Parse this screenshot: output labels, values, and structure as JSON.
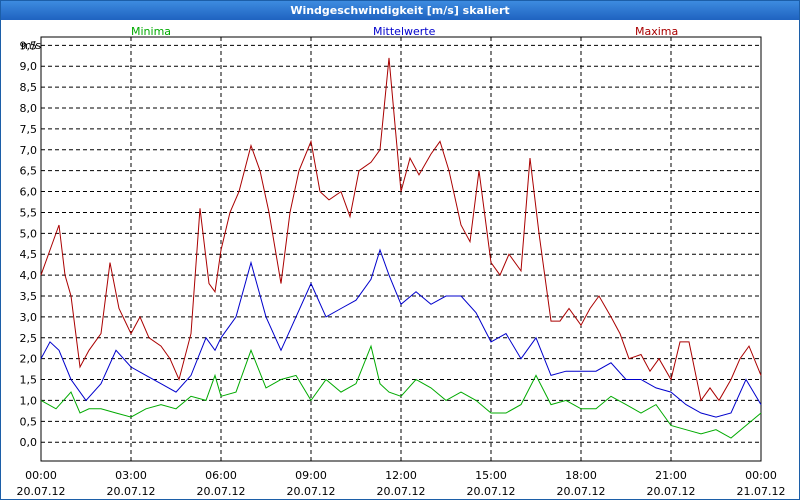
{
  "window": {
    "title": "Windgeschwindigkeit [m/s] skaliert"
  },
  "chart_data": {
    "type": "line",
    "title": "Windgeschwindigkeit [m/s] skaliert",
    "ylabel": "m/s",
    "ylim": [
      0,
      9.5
    ],
    "yticks": [
      "0,0",
      "0,5",
      "1,0",
      "1,5",
      "2,0",
      "2,5",
      "3,0",
      "3,5",
      "4,0",
      "4,5",
      "5,0",
      "5,5",
      "6,0",
      "6,5",
      "7,0",
      "7,5",
      "8,0",
      "8,5",
      "9,0",
      "9,5"
    ],
    "xticks": [
      {
        "time": "00:00",
        "date": "20.07.12"
      },
      {
        "time": "03:00",
        "date": "20.07.12"
      },
      {
        "time": "06:00",
        "date": "20.07.12"
      },
      {
        "time": "09:00",
        "date": "20.07.12"
      },
      {
        "time": "12:00",
        "date": "20.07.12"
      },
      {
        "time": "15:00",
        "date": "20.07.12"
      },
      {
        "time": "18:00",
        "date": "20.07.12"
      },
      {
        "time": "21:00",
        "date": "20.07.12"
      },
      {
        "time": "00:00",
        "date": "21.07.12"
      }
    ],
    "grid": true,
    "series": [
      {
        "name": "Minima",
        "color": "#00aa00",
        "x_hours": [
          0,
          0.5,
          1,
          1.3,
          1.6,
          2,
          2.5,
          3,
          3.5,
          4,
          4.5,
          5,
          5.5,
          5.8,
          6,
          6.5,
          7,
          7.5,
          8,
          8.5,
          9,
          9.5,
          10,
          10.5,
          11,
          11.3,
          11.6,
          12,
          12.5,
          13,
          13.5,
          14,
          14.5,
          15,
          15.5,
          16,
          16.5,
          17,
          17.5,
          18,
          18.5,
          19,
          19.5,
          20,
          20.5,
          21,
          21.5,
          22,
          22.5,
          23,
          23.5,
          24
        ],
        "values": [
          1.0,
          0.8,
          1.2,
          0.7,
          0.8,
          0.8,
          0.7,
          0.6,
          0.8,
          0.9,
          0.8,
          1.1,
          1.0,
          1.6,
          1.1,
          1.2,
          2.2,
          1.3,
          1.5,
          1.6,
          1.0,
          1.5,
          1.2,
          1.4,
          2.3,
          1.4,
          1.2,
          1.1,
          1.5,
          1.3,
          1.0,
          1.2,
          1.0,
          0.7,
          0.7,
          0.9,
          1.6,
          0.9,
          1.0,
          0.8,
          0.8,
          1.1,
          0.9,
          0.7,
          0.9,
          0.4,
          0.3,
          0.2,
          0.3,
          0.1,
          0.4,
          0.7
        ]
      },
      {
        "name": "Mittelwerte",
        "color": "#0000cc",
        "x_hours": [
          0,
          0.3,
          0.6,
          1,
          1.5,
          2,
          2.5,
          3,
          3.5,
          4,
          4.5,
          5,
          5.5,
          5.8,
          6,
          6.5,
          7,
          7.5,
          8,
          8.5,
          9,
          9.5,
          10,
          10.5,
          11,
          11.3,
          11.6,
          12,
          12.5,
          13,
          13.5,
          14,
          14.5,
          15,
          15.5,
          16,
          16.5,
          17,
          17.5,
          18,
          18.5,
          19,
          19.5,
          20,
          20.5,
          21,
          21.5,
          22,
          22.5,
          23,
          23.5,
          24
        ],
        "values": [
          2.0,
          2.4,
          2.2,
          1.5,
          1.0,
          1.4,
          2.2,
          1.8,
          1.6,
          1.4,
          1.2,
          1.6,
          2.5,
          2.2,
          2.5,
          3.0,
          4.3,
          3.0,
          2.2,
          3.0,
          3.8,
          3.0,
          3.2,
          3.4,
          3.9,
          4.6,
          4.0,
          3.3,
          3.6,
          3.3,
          3.5,
          3.5,
          3.1,
          2.4,
          2.6,
          2.0,
          2.5,
          1.6,
          1.7,
          1.7,
          1.7,
          1.9,
          1.5,
          1.5,
          1.3,
          1.2,
          0.9,
          0.7,
          0.6,
          0.7,
          1.5,
          0.9
        ]
      },
      {
        "name": "Maxima",
        "color": "#aa0000",
        "x_hours": [
          0,
          0.3,
          0.6,
          0.8,
          1,
          1.3,
          1.6,
          2,
          2.3,
          2.6,
          3,
          3.3,
          3.6,
          4,
          4.3,
          4.6,
          5,
          5.3,
          5.6,
          5.8,
          6,
          6.3,
          6.6,
          7,
          7.3,
          7.6,
          8,
          8.3,
          8.6,
          9,
          9.3,
          9.6,
          10,
          10.3,
          10.6,
          11,
          11.3,
          11.6,
          12,
          12.3,
          12.6,
          13,
          13.3,
          13.6,
          14,
          14.3,
          14.6,
          15,
          15.3,
          15.6,
          16,
          16.3,
          16.6,
          17,
          17.3,
          17.6,
          18,
          18.3,
          18.6,
          19,
          19.3,
          19.6,
          20,
          20.3,
          20.6,
          21,
          21.3,
          21.6,
          22,
          22.3,
          22.6,
          23,
          23.3,
          23.6,
          24
        ],
        "values": [
          4.0,
          4.6,
          5.2,
          4.0,
          3.5,
          1.8,
          2.2,
          2.6,
          4.3,
          3.2,
          2.6,
          3.0,
          2.5,
          2.3,
          2.0,
          1.5,
          2.6,
          5.6,
          3.8,
          3.6,
          4.6,
          5.5,
          6.0,
          7.1,
          6.5,
          5.5,
          3.8,
          5.5,
          6.5,
          7.2,
          6.0,
          5.8,
          6.0,
          5.4,
          6.5,
          6.7,
          7.0,
          9.2,
          6.0,
          6.8,
          6.4,
          6.9,
          7.2,
          6.5,
          5.2,
          4.8,
          6.5,
          4.3,
          4.0,
          4.5,
          4.1,
          6.8,
          5.0,
          2.9,
          2.9,
          3.2,
          2.8,
          3.2,
          3.5,
          3.0,
          2.6,
          2.0,
          2.1,
          1.7,
          2.0,
          1.5,
          2.4,
          2.4,
          1.0,
          1.3,
          1.0,
          1.5,
          2.0,
          2.3,
          1.6
        ]
      }
    ]
  }
}
